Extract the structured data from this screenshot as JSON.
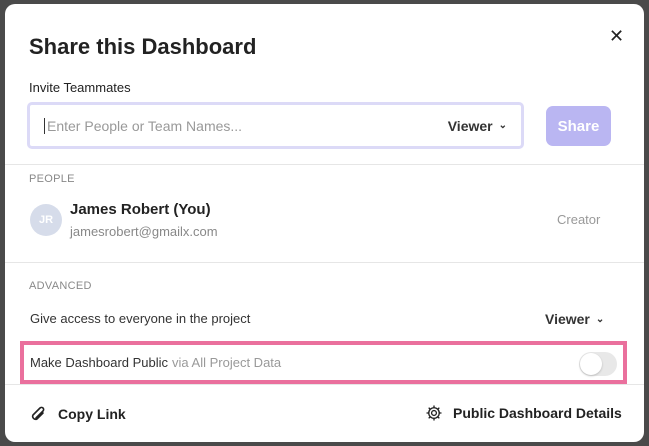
{
  "dialog": {
    "title": "Share this Dashboard",
    "close_icon": "close-icon"
  },
  "invite": {
    "label": "Invite Teammates",
    "placeholder": "Enter People or Team Names...",
    "role": "Viewer",
    "share_label": "Share"
  },
  "people": {
    "heading": "PEOPLE",
    "items": [
      {
        "initials": "JR",
        "name": "James Robert (You)",
        "email": "jamesrobert@gmailx.com",
        "role": "Creator"
      }
    ]
  },
  "advanced": {
    "heading": "ADVANCED",
    "project_access_label": "Give access to everyone in the project",
    "project_access_role": "Viewer",
    "public_label": "Make Dashboard Public",
    "public_sub": "via All Project Data",
    "public_enabled": false
  },
  "footer": {
    "copy_link": "Copy Link",
    "public_details": "Public Dashboard Details"
  },
  "colors": {
    "accent": "#bab6f2",
    "highlight": "#ea709d"
  }
}
